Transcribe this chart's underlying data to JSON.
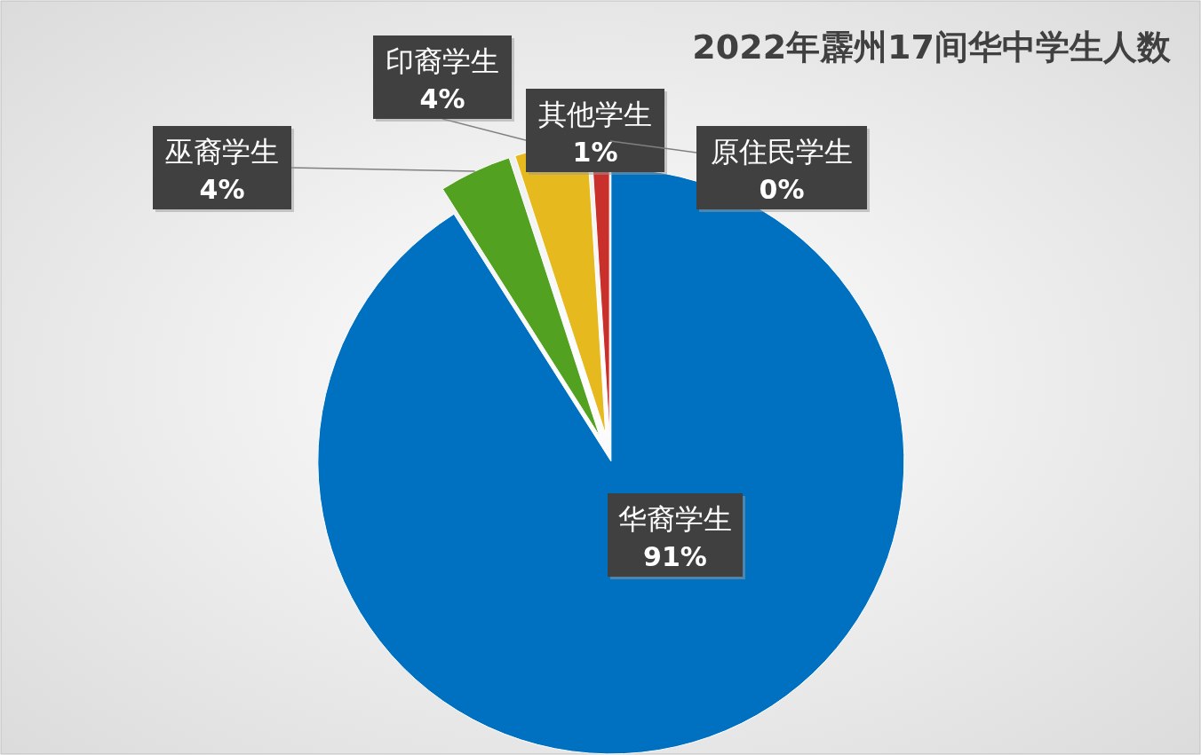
{
  "chart_data": {
    "type": "pie",
    "title": "2022年霹州17间华中学生人数",
    "categories": [
      "华裔学生",
      "巫裔学生",
      "印裔学生",
      "其他学生",
      "原住民学生"
    ],
    "values": [
      91,
      4,
      4,
      1,
      0
    ],
    "colors": [
      "#0070c0",
      "#53a121",
      "#e6b91e",
      "#c9302c",
      "#a5a5a5"
    ],
    "value_labels": [
      "91%",
      "4%",
      "4%",
      "1%",
      "0%"
    ]
  }
}
